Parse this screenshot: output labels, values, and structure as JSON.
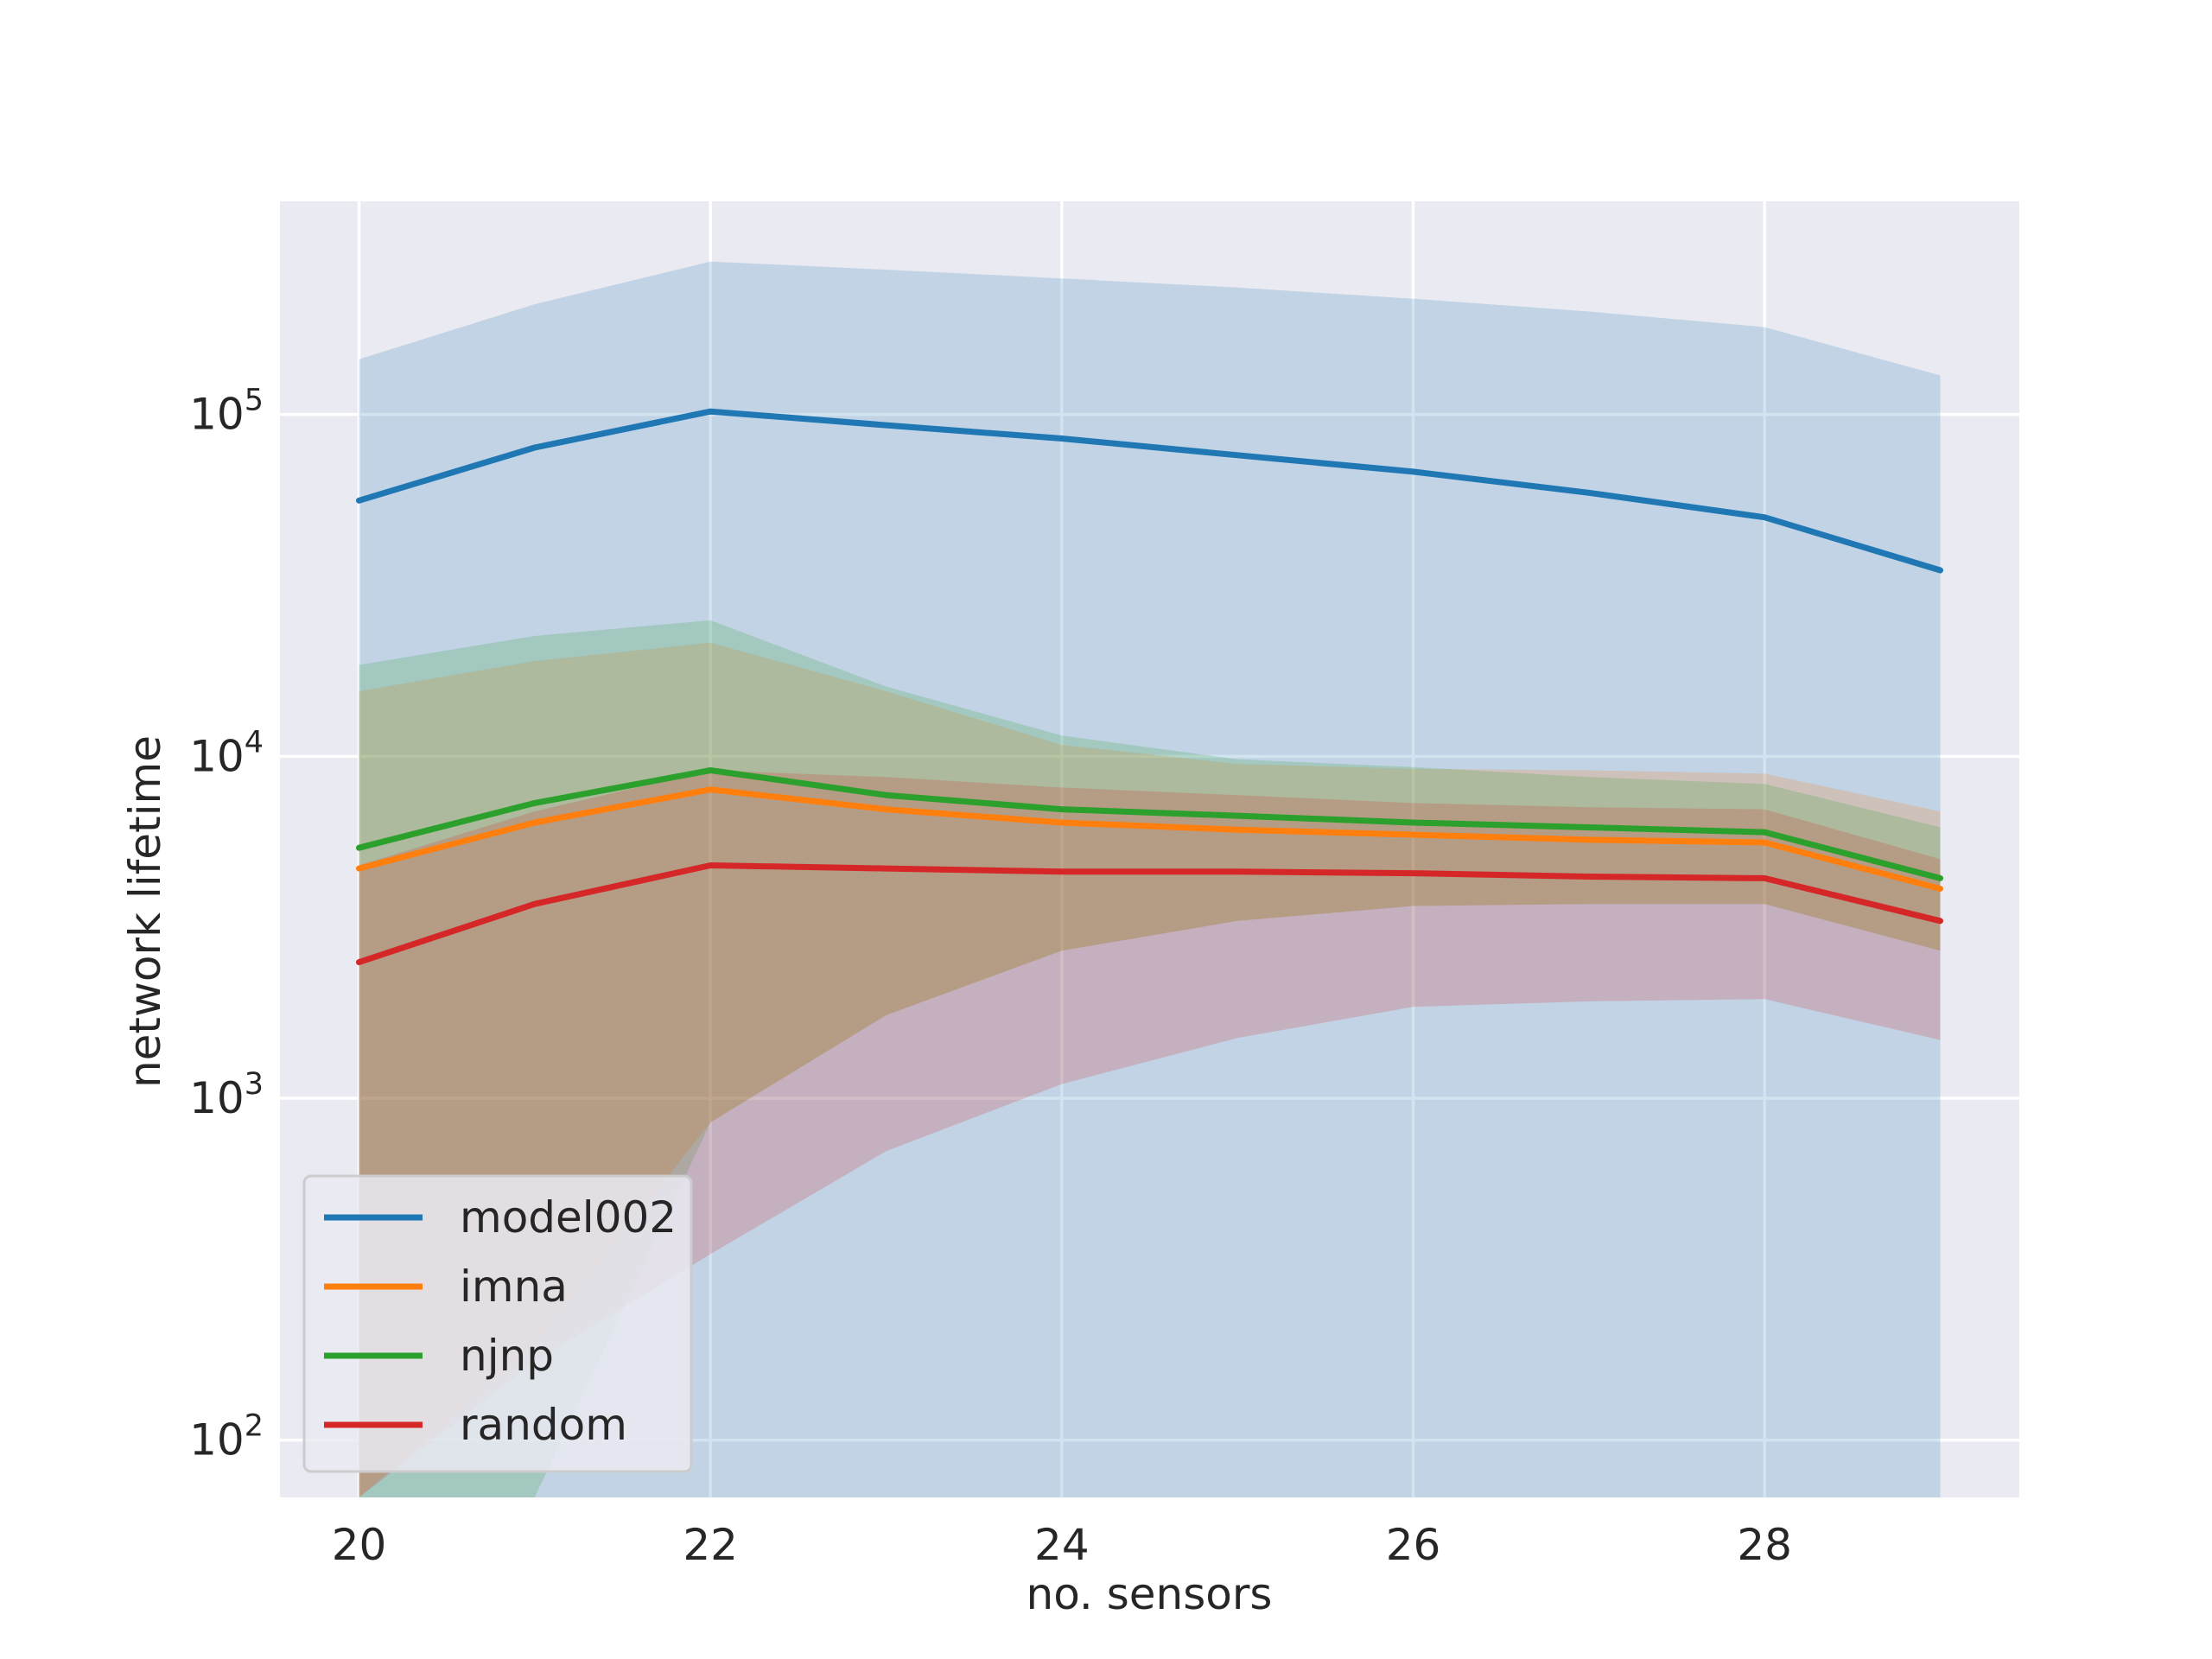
{
  "chart_data": {
    "type": "line",
    "title": "",
    "xlabel": "no. sensors",
    "ylabel": "network lifetime",
    "yscale": "log",
    "xlim": [
      19.55,
      29.45
    ],
    "ylim": [
      68,
      420000
    ],
    "x": [
      20,
      21,
      22,
      23,
      24,
      25,
      26,
      27,
      28,
      29
    ],
    "x_ticks": [
      20,
      22,
      24,
      26,
      28
    ],
    "x_tick_labels": [
      "20",
      "22",
      "24",
      "26",
      "28"
    ],
    "y_ticks": [
      100,
      1000,
      10000,
      100000
    ],
    "y_tick_labels": [
      {
        "base": "10",
        "exp": "2"
      },
      {
        "base": "10",
        "exp": "3"
      },
      {
        "base": "10",
        "exp": "4"
      },
      {
        "base": "10",
        "exp": "5"
      }
    ],
    "grid": true,
    "legend_position": "lower-left",
    "series": [
      {
        "name": "model002",
        "color": "#1f77b4",
        "values": [
          56000,
          80000,
          102000,
          93000,
          85000,
          76000,
          68000,
          59000,
          50000,
          35000
        ],
        "band_upper": [
          145000,
          210000,
          280000,
          265000,
          250000,
          235000,
          218000,
          200000,
          180000,
          130000
        ],
        "band_lower": [
          68,
          68,
          68,
          68,
          68,
          68,
          68,
          68,
          68,
          68
        ]
      },
      {
        "name": "imna",
        "color": "#ff7f0e",
        "values": [
          4700,
          6400,
          8000,
          7000,
          6400,
          6100,
          5900,
          5700,
          5600,
          4100
        ],
        "band_upper": [
          15500,
          19000,
          21500,
          15500,
          10800,
          9500,
          9200,
          9100,
          8900,
          6900
        ],
        "band_lower": [
          68,
          190,
          850,
          1750,
          2700,
          3300,
          3650,
          3700,
          3700,
          2700
        ]
      },
      {
        "name": "njnp",
        "color": "#2ca02c",
        "values": [
          5400,
          7300,
          9100,
          7700,
          7000,
          6700,
          6400,
          6200,
          6000,
          4400
        ],
        "band_upper": [
          18500,
          22500,
          25000,
          16000,
          11500,
          9800,
          9300,
          8700,
          8300,
          6200
        ],
        "band_lower": [
          68,
          68,
          850,
          1750,
          2700,
          3300,
          3650,
          3700,
          3700,
          2700
        ]
      },
      {
        "name": "random",
        "color": "#d62728",
        "values": [
          2500,
          3700,
          4800,
          4700,
          4600,
          4600,
          4550,
          4450,
          4400,
          3300
        ],
        "band_upper": [
          4800,
          6900,
          9100,
          8700,
          8100,
          7700,
          7300,
          7100,
          7000,
          5000
        ],
        "band_lower": [
          68,
          170,
          350,
          700,
          1100,
          1500,
          1850,
          1920,
          1950,
          1480
        ]
      }
    ]
  }
}
